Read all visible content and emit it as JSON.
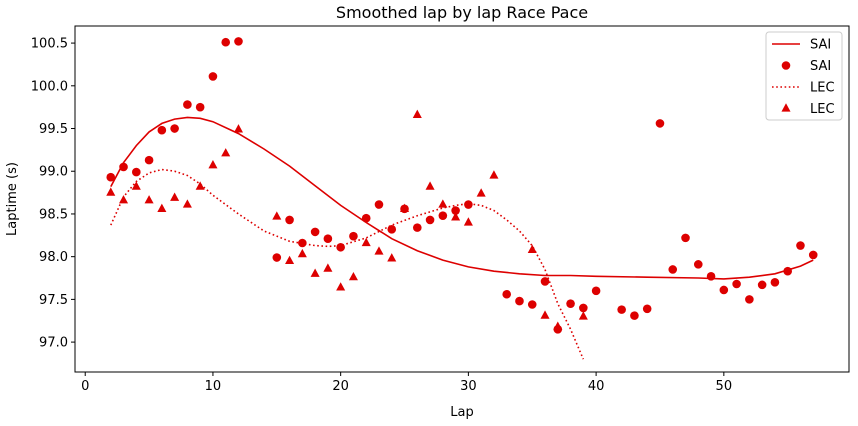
{
  "chart_data": {
    "type": "scatter",
    "title": "Smoothed lap by lap Race Pace",
    "xlabel": "Lap",
    "ylabel": "Laptime (s)",
    "xlim": [
      -0.8,
      59.8
    ],
    "ylim": [
      96.65,
      100.7
    ],
    "xticks": [
      0,
      10,
      20,
      30,
      40,
      50
    ],
    "yticks": [
      97.0,
      97.5,
      98.0,
      98.5,
      99.0,
      99.5,
      100.0,
      100.5
    ],
    "ytick_labels": [
      "97.0",
      "97.5",
      "98.0",
      "98.5",
      "99.0",
      "99.5",
      "100.0",
      "100.5"
    ],
    "grid": false,
    "legend_position": "top-right",
    "color": "#dd0000",
    "series": [
      {
        "name": "SAI",
        "kind": "line",
        "style": "solid",
        "x": [
          2,
          3,
          4,
          5,
          6,
          7,
          8,
          9,
          10,
          12,
          14,
          16,
          18,
          20,
          22,
          24,
          26,
          28,
          30,
          32,
          34,
          36,
          38,
          40,
          44,
          48,
          50,
          52,
          54,
          56,
          57
        ],
        "y": [
          98.82,
          99.1,
          99.3,
          99.46,
          99.56,
          99.61,
          99.63,
          99.62,
          99.58,
          99.44,
          99.26,
          99.06,
          98.83,
          98.6,
          98.4,
          98.21,
          98.07,
          97.96,
          97.88,
          97.83,
          97.8,
          97.78,
          97.78,
          97.77,
          97.76,
          97.75,
          97.74,
          97.76,
          97.8,
          97.89,
          97.96
        ]
      },
      {
        "name": "SAI",
        "kind": "scatter",
        "marker": "circle",
        "x": [
          2,
          3,
          4,
          5,
          6,
          7,
          8,
          9,
          10,
          11,
          12,
          15,
          16,
          17,
          18,
          19,
          20,
          21,
          22,
          23,
          24,
          25,
          26,
          27,
          28,
          29,
          30,
          33,
          34,
          35,
          36,
          37,
          38,
          39,
          40,
          42,
          43,
          44,
          45,
          46,
          47,
          48,
          49,
          50,
          51,
          52,
          53,
          54,
          55,
          56,
          57
        ],
        "y": [
          98.93,
          99.05,
          98.99,
          99.13,
          99.48,
          99.5,
          99.78,
          99.75,
          100.11,
          100.51,
          100.52,
          97.99,
          98.43,
          98.16,
          98.29,
          98.21,
          98.11,
          98.24,
          98.45,
          98.61,
          98.32,
          98.56,
          98.34,
          98.43,
          98.48,
          98.54,
          98.61,
          97.56,
          97.48,
          97.44,
          97.71,
          97.15,
          97.45,
          97.4,
          97.6,
          97.38,
          97.31,
          97.39,
          99.56,
          97.85,
          98.22,
          97.91,
          97.77,
          97.61,
          97.68,
          97.5,
          97.67,
          97.7,
          97.83,
          98.13,
          98.02
        ]
      },
      {
        "name": "LEC",
        "kind": "line",
        "style": "dotted",
        "x": [
          2,
          3,
          4,
          5,
          6,
          7,
          8,
          9,
          10,
          12,
          14,
          16,
          18,
          19,
          20,
          22,
          24,
          26,
          28,
          29,
          30,
          31,
          32,
          33,
          34,
          35,
          36,
          37,
          38,
          39
        ],
        "y": [
          98.37,
          98.7,
          98.88,
          98.98,
          99.02,
          99.0,
          98.95,
          98.85,
          98.72,
          98.5,
          98.3,
          98.18,
          98.13,
          98.12,
          98.13,
          98.22,
          98.37,
          98.48,
          98.57,
          98.6,
          98.62,
          98.6,
          98.54,
          98.43,
          98.3,
          98.13,
          97.85,
          97.45,
          97.15,
          96.8
        ]
      },
      {
        "name": "LEC",
        "kind": "scatter",
        "marker": "triangle",
        "x": [
          2,
          3,
          4,
          5,
          6,
          7,
          8,
          9,
          10,
          11,
          12,
          15,
          16,
          17,
          18,
          19,
          20,
          21,
          22,
          23,
          24,
          25,
          26,
          27,
          28,
          29,
          30,
          31,
          32,
          35,
          36,
          37,
          39
        ],
        "y": [
          98.75,
          98.66,
          98.82,
          98.66,
          98.56,
          98.69,
          98.61,
          98.82,
          99.07,
          99.21,
          99.49,
          98.47,
          97.95,
          98.03,
          97.8,
          97.86,
          97.64,
          97.76,
          98.16,
          98.06,
          97.98,
          98.56,
          99.66,
          98.82,
          98.61,
          98.46,
          98.4,
          98.74,
          98.95,
          98.08,
          97.31,
          97.18,
          97.3
        ]
      }
    ]
  }
}
